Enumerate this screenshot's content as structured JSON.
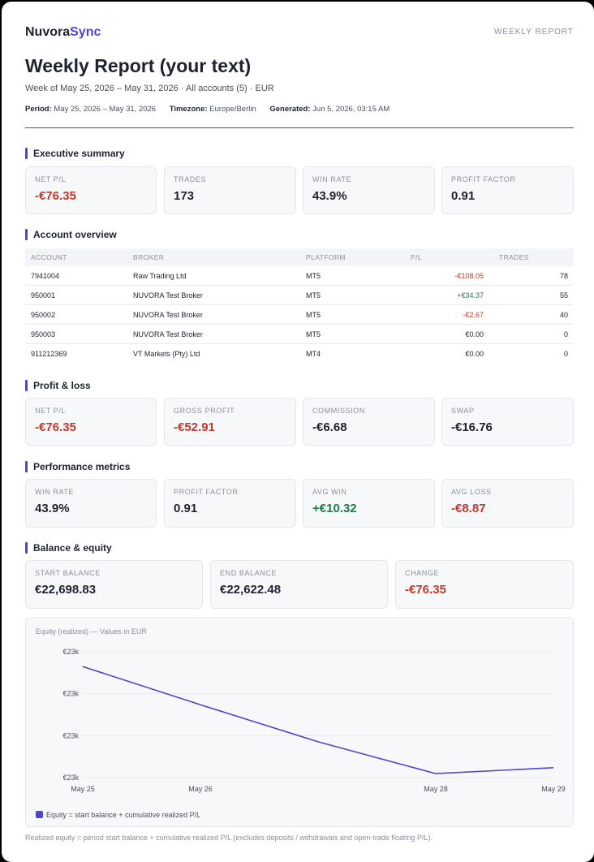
{
  "header": {
    "brand_main": "Nuvora",
    "brand_accent": "Sync",
    "report_tag": "WEEKLY REPORT",
    "title": "Weekly Report (your text)",
    "subtitle": "Week of May 25, 2026 – May 31, 2026 · All accounts (5) · EUR",
    "period_label": "Period:",
    "period_value": "May 25, 2026 – May 31, 2026",
    "timezone_label": "Timezone:",
    "timezone_value": "Europe/Berlin",
    "generated_label": "Generated:",
    "generated_value": "Jun 5, 2026, 03:15 AM"
  },
  "executive_summary": {
    "title": "Executive summary",
    "cards": [
      {
        "label": "NET P/L",
        "value": "-€76.35"
      },
      {
        "label": "TRADES",
        "value": "173"
      },
      {
        "label": "WIN RATE",
        "value": "43.9%"
      },
      {
        "label": "PROFIT FACTOR",
        "value": "0.91"
      }
    ]
  },
  "account_overview": {
    "title": "Account overview",
    "columns": [
      "ACCOUNT",
      "BROKER",
      "PLATFORM",
      "P/L",
      "TRADES"
    ],
    "rows": [
      {
        "account": "7941004",
        "broker": "Raw Trading Ltd",
        "platform": "MT5",
        "pl": "-€108.05",
        "trades": "78"
      },
      {
        "account": "950001",
        "broker": "NUVORA Test Broker",
        "platform": "MT5",
        "pl": "+€34.37",
        "trades": "55"
      },
      {
        "account": "950002",
        "broker": "NUVORA Test Broker",
        "platform": "MT5",
        "pl": "-€2.67",
        "trades": "40"
      },
      {
        "account": "950003",
        "broker": "NUVORA Test Broker",
        "platform": "MT5",
        "pl": "€0.00",
        "trades": "0"
      },
      {
        "account": "911212369",
        "broker": "VT Markets (Pty) Ltd",
        "platform": "MT4",
        "pl": "€0.00",
        "trades": "0"
      }
    ]
  },
  "profit_loss": {
    "title": "Profit & loss",
    "cards": [
      {
        "label": "NET P/L",
        "value": "-€76.35"
      },
      {
        "label": "GROSS PROFIT",
        "value": "-€52.91"
      },
      {
        "label": "COMMISSION",
        "value": "-€6.68"
      },
      {
        "label": "SWAP",
        "value": "-€16.76"
      }
    ]
  },
  "performance": {
    "title": "Performance metrics",
    "cards": [
      {
        "label": "WIN RATE",
        "value": "43.9%"
      },
      {
        "label": "PROFIT FACTOR",
        "value": "0.91"
      },
      {
        "label": "AVG WIN",
        "value": "+€10.32"
      },
      {
        "label": "AVG LOSS",
        "value": "-€8.87"
      }
    ]
  },
  "balance": {
    "title": "Balance & equity",
    "cards": [
      {
        "label": "START BALANCE",
        "value": "€22,698.83"
      },
      {
        "label": "END BALANCE",
        "value": "€22,622.48"
      },
      {
        "label": "CHANGE",
        "value": "-€76.35"
      }
    ]
  },
  "colors": {
    "accent": "#5046c8",
    "negative": "#c0392b",
    "positive": "#1e7a4b"
  },
  "chart_data": {
    "type": "line",
    "title": "Equity (realized) — Values in EUR",
    "x_tick_labels": [
      "May 25",
      "May 26",
      "May 28",
      "May 29"
    ],
    "y_tick_labels": [
      "€23k",
      "€23k",
      "€23k",
      "€23k"
    ],
    "ylim": [
      22615,
      22710
    ],
    "grid": true,
    "legend_position": "bottom-left",
    "series": [
      {
        "name": "Equity = start balance + cumulative realized P/L",
        "color": "#5046c8",
        "points": [
          {
            "x": "2026-05-25",
            "y": 22698.83
          },
          {
            "x": "2026-05-26",
            "y": 22670.0
          },
          {
            "x": "2026-05-27",
            "y": 22642.0
          },
          {
            "x": "2026-05-28",
            "y": 22618.0
          },
          {
            "x": "2026-05-29",
            "y": 22622.48
          }
        ]
      }
    ]
  },
  "footnote": "Realized equity = period start balance + cumulative realized P/L (excludes deposits / withdrawals and open-trade floating P/L)."
}
